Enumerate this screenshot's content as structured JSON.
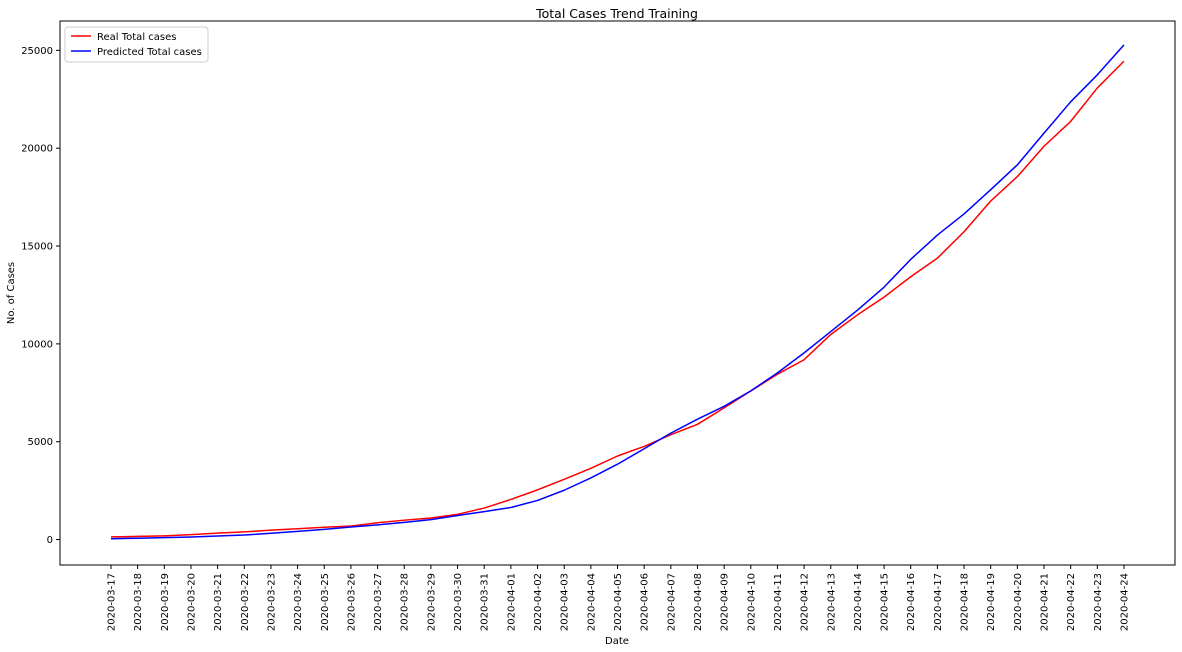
{
  "chart_data": {
    "type": "line",
    "title": "Total Cases Trend Training",
    "xlabel": "Date",
    "ylabel": "No. of Cases",
    "ylim": [
      -1300,
      26500
    ],
    "yticks": [
      0,
      5000,
      10000,
      15000,
      20000,
      25000
    ],
    "grid": false,
    "legend_position": "top-left",
    "x": [
      "2020-03-17",
      "2020-03-18",
      "2020-03-19",
      "2020-03-20",
      "2020-03-21",
      "2020-03-22",
      "2020-03-23",
      "2020-03-24",
      "2020-03-25",
      "2020-03-26",
      "2020-03-27",
      "2020-03-28",
      "2020-03-29",
      "2020-03-30",
      "2020-03-31",
      "2020-04-01",
      "2020-04-02",
      "2020-04-03",
      "2020-04-04",
      "2020-04-05",
      "2020-04-06",
      "2020-04-07",
      "2020-04-08",
      "2020-04-09",
      "2020-04-10",
      "2020-04-11",
      "2020-04-12",
      "2020-04-13",
      "2020-04-14",
      "2020-04-15",
      "2020-04-16",
      "2020-04-17",
      "2020-04-18",
      "2020-04-19",
      "2020-04-20",
      "2020-04-21",
      "2020-04-22",
      "2020-04-23",
      "2020-04-24"
    ],
    "series": [
      {
        "name": "Real Total cases",
        "color": "#ff0000",
        "values": [
          140,
          160,
          190,
          250,
          330,
          390,
          480,
          550,
          630,
          690,
          860,
          990,
          1100,
          1290,
          1610,
          2050,
          2540,
          3080,
          3640,
          4270,
          4760,
          5360,
          5890,
          6730,
          7590,
          8450,
          9190,
          10480,
          11480,
          12390,
          13430,
          14380,
          15730,
          17300,
          18550,
          20100,
          21370,
          23080,
          24450
        ]
      },
      {
        "name": "Predicted Total cases",
        "color": "#0000ff",
        "values": [
          40,
          70,
          100,
          130,
          180,
          230,
          320,
          420,
          520,
          640,
          750,
          880,
          1020,
          1230,
          1430,
          1640,
          2000,
          2520,
          3150,
          3850,
          4640,
          5440,
          6150,
          6810,
          7600,
          8520,
          9540,
          10630,
          11720,
          12900,
          14320,
          15560,
          16640,
          17880,
          19150,
          20770,
          22370,
          23750,
          25280
        ]
      }
    ]
  }
}
